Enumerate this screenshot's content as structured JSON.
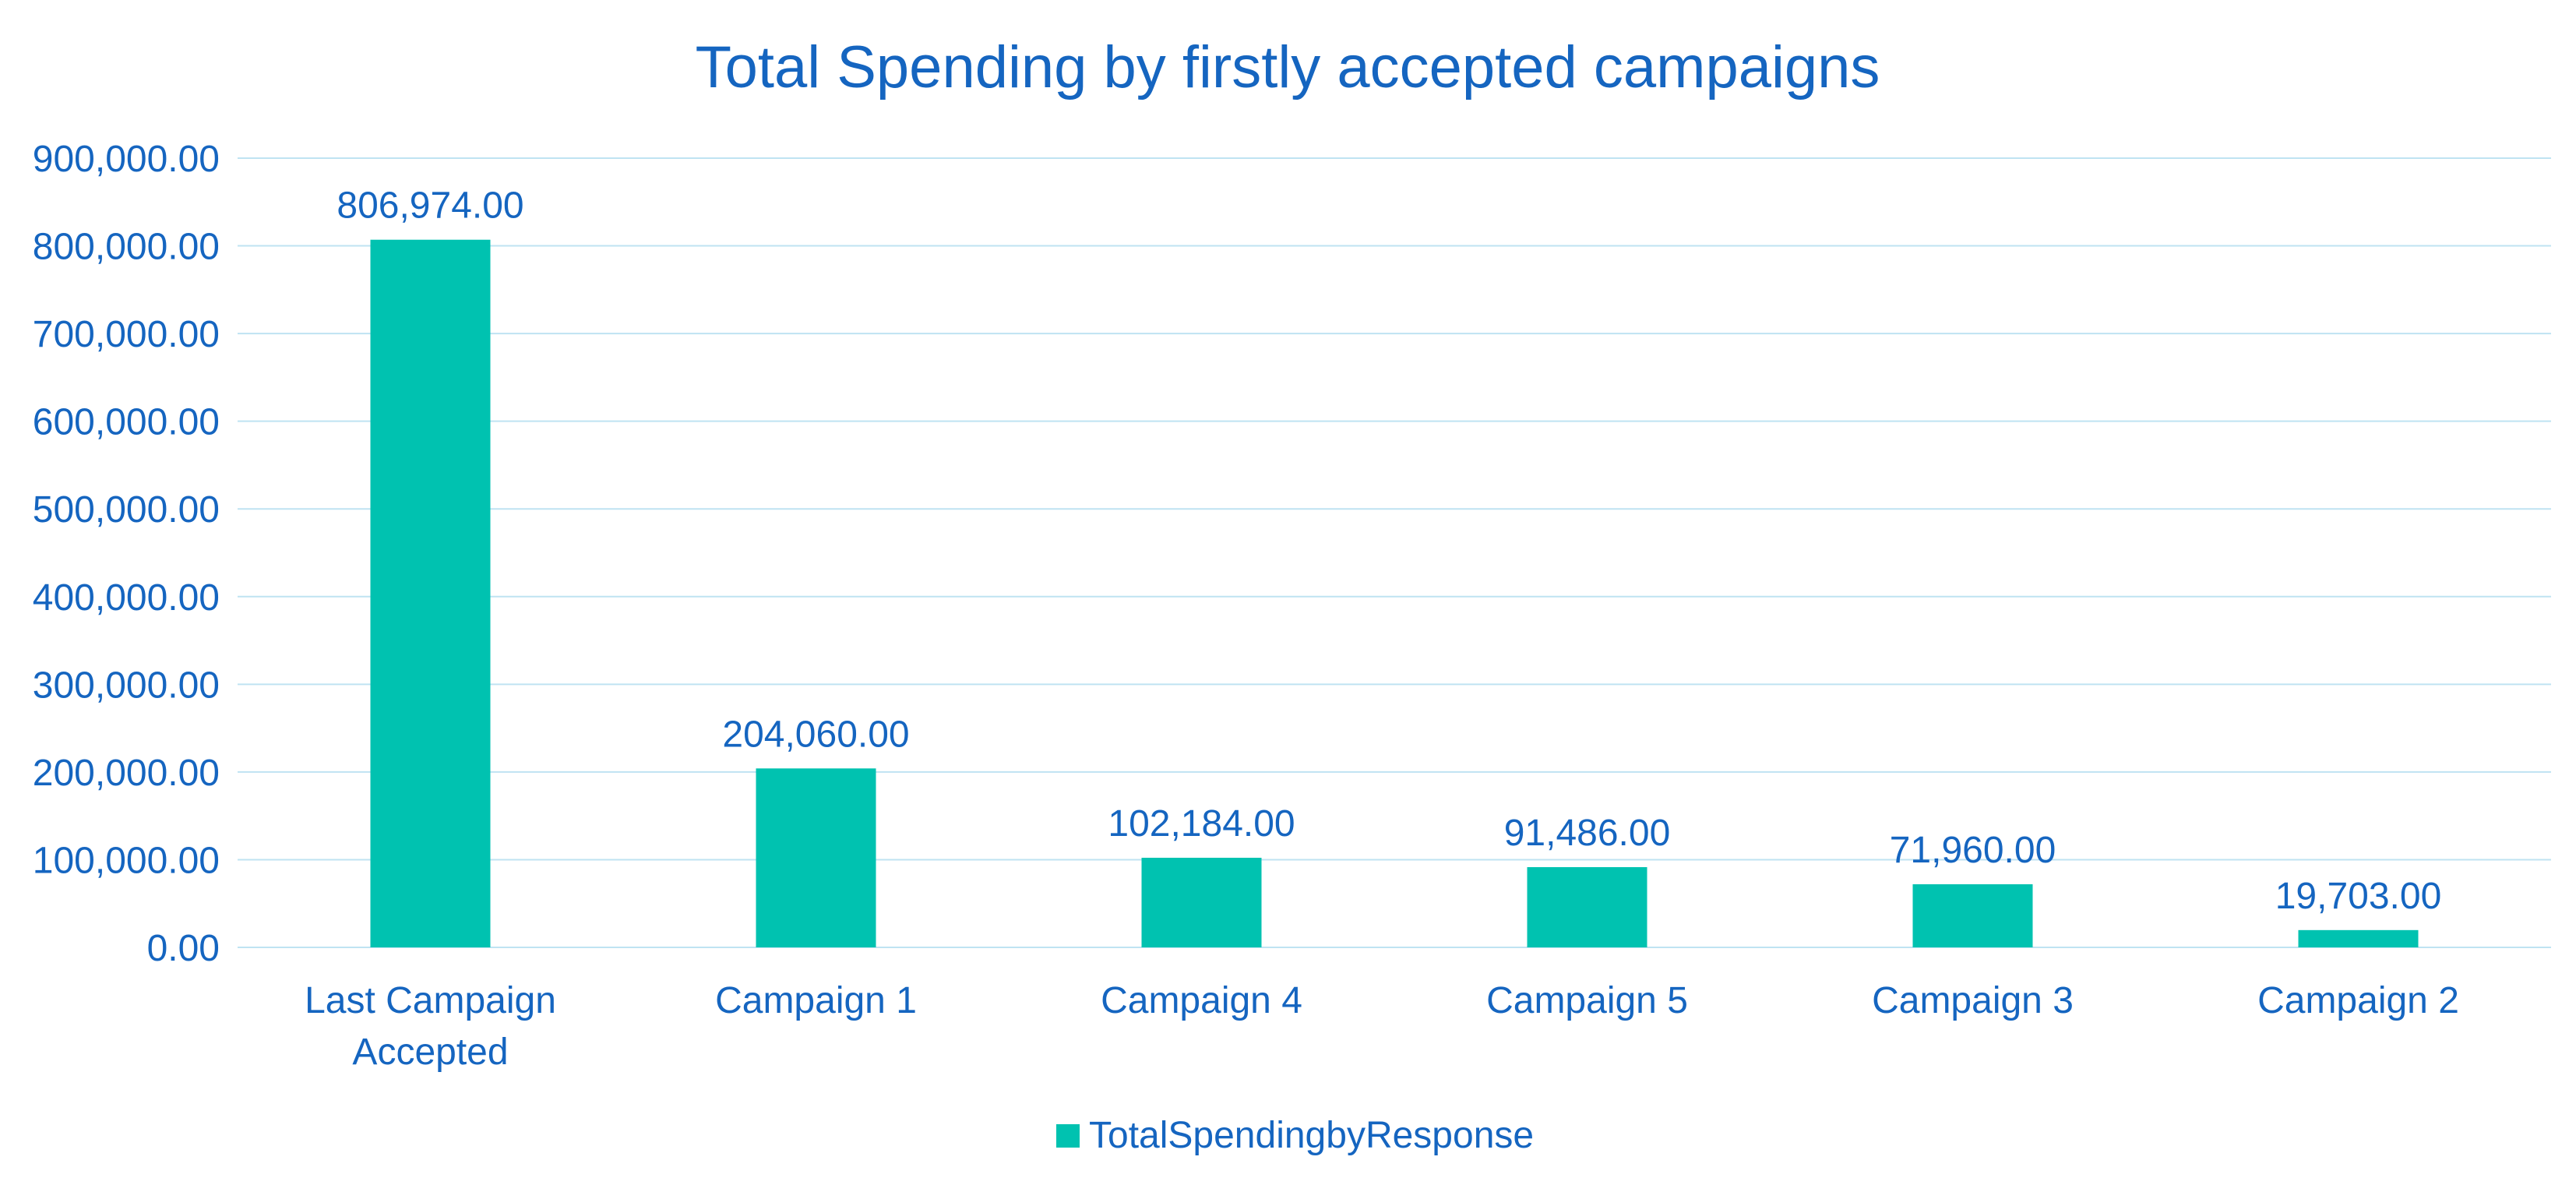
{
  "chart_data": {
    "type": "bar",
    "title": "Total Spending by firstly accepted campaigns",
    "categories": [
      "Last Campaign Accepted",
      "Campaign 1",
      "Campaign 4",
      "Campaign 5",
      "Campaign 3",
      "Campaign 2"
    ],
    "series": [
      {
        "name": "TotalSpendingbyResponse",
        "values": [
          806974,
          204060,
          102184,
          91486,
          71960,
          19703
        ],
        "labels": [
          "806,974.00",
          "204,060.00",
          "102,184.00",
          "91,486.00",
          "71,960.00",
          "19,703.00"
        ]
      }
    ],
    "ylim": [
      0,
      900000
    ],
    "yticks": [
      "0.00",
      "100,000.00",
      "200,000.00",
      "300,000.00",
      "400,000.00",
      "500,000.00",
      "600,000.00",
      "700,000.00",
      "800,000.00",
      "900,000.00"
    ],
    "grid": true,
    "legend_position": "bottom",
    "colors": {
      "bar": "#00C2B0",
      "text": "#1565C0",
      "grid": "#BFE3F2"
    }
  }
}
